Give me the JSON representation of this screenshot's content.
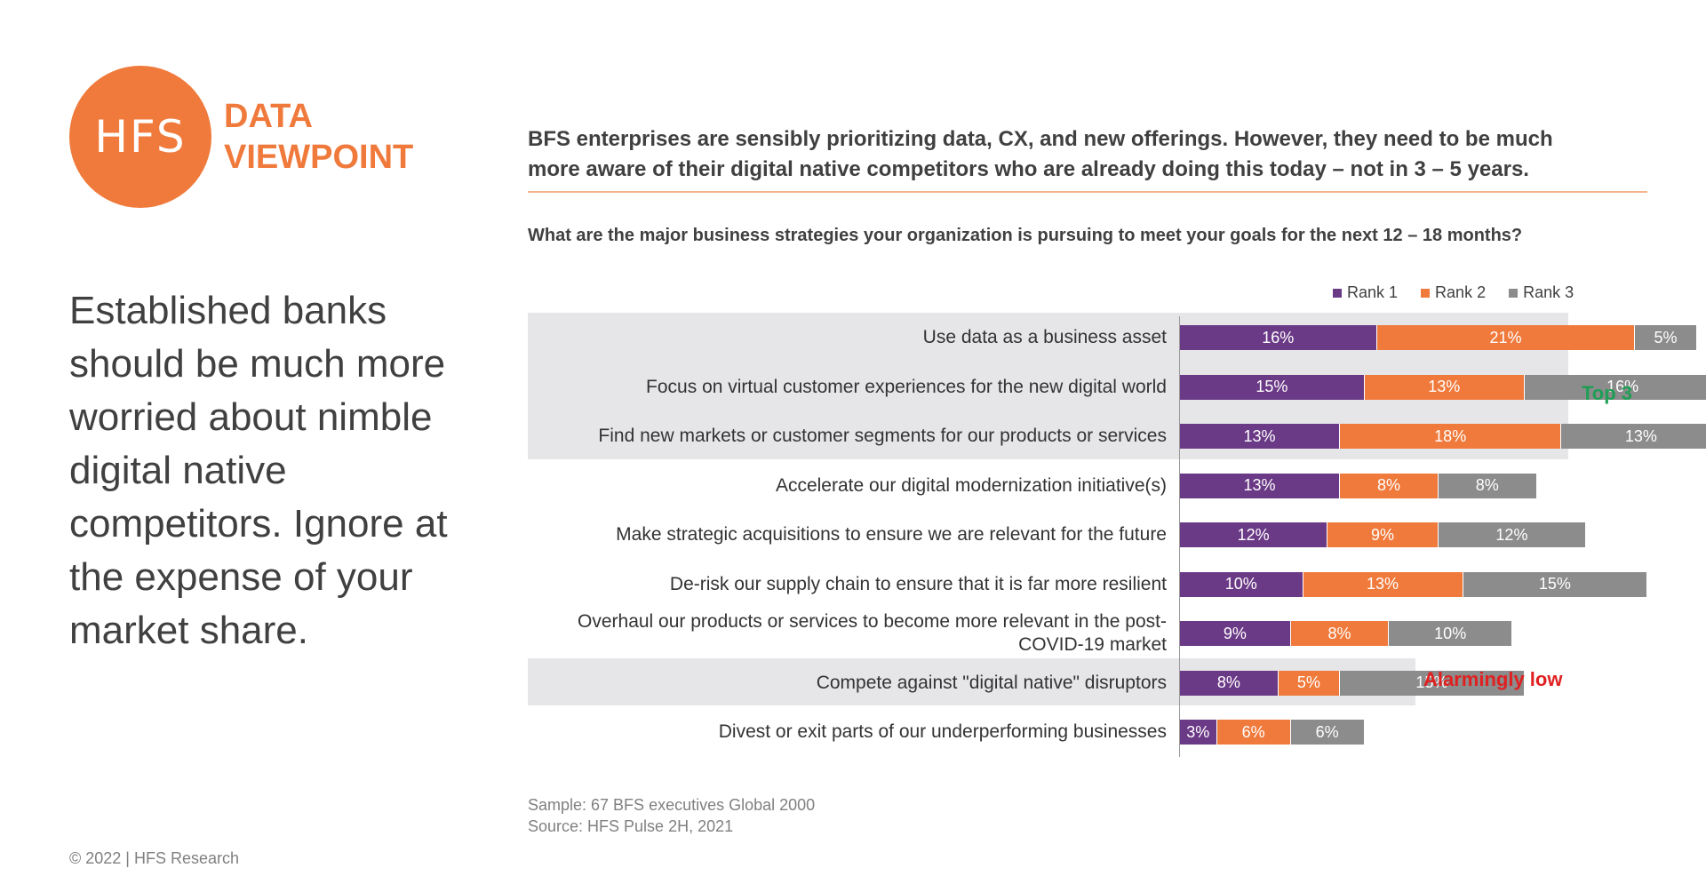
{
  "logo": {
    "mark": "HFS",
    "line1": "DATA",
    "line2": "VIEWPOINT"
  },
  "lead_text": "Established banks should be much more worried about nimble digital native competitors. Ignore at the expense of your market share.",
  "headline": {
    "line1": "BFS enterprises are sensibly prioritizing data, CX, and new offerings. However, they need to be much",
    "line2": "more aware of their digital native competitors who are already doing this today – not in 3 – 5 years."
  },
  "callouts": {
    "top": "Top 3",
    "low": "Alarmingly low"
  },
  "footnote": {
    "sample": "Sample: 67 BFS executives Global 2000",
    "source": "Source: HFS Pulse 2H, 2021"
  },
  "copyright": "© 2022 | HFS Research",
  "colors": {
    "rank1": "#6b3a87",
    "rank2": "#f07a3c",
    "rank3": "#8c8c8c",
    "accent": "#f07a3c"
  },
  "chart_data": {
    "type": "bar",
    "orientation": "horizontal",
    "stacked": true,
    "title": "What are the major business strategies your organization is pursuing to meet your goals for the next 12 – 18 months?",
    "legend_position": "top-right",
    "categories": [
      "Use data as a business asset",
      "Focus on virtual customer experiences for the new digital world",
      "Find new markets or customer segments for our products or services",
      "Accelerate our digital modernization initiative(s)",
      "Make strategic acquisitions to ensure we are relevant for the future",
      "De-risk our supply chain to ensure that it is far more resilient",
      "Overhaul our products or services to become more relevant in the post-COVID-19 market",
      "Compete against \"digital native\" disruptors",
      "Divest or exit parts of our underperforming businesses"
    ],
    "series": [
      {
        "name": "Rank 1",
        "values": [
          16,
          15,
          13,
          13,
          12,
          10,
          9,
          8,
          3
        ]
      },
      {
        "name": "Rank 2",
        "values": [
          21,
          13,
          18,
          8,
          9,
          13,
          8,
          5,
          6
        ]
      },
      {
        "name": "Rank 3",
        "values": [
          5,
          16,
          13,
          8,
          12,
          15,
          10,
          15,
          6
        ]
      }
    ],
    "value_suffix": "%",
    "highlighted_categories": [
      0,
      1,
      2,
      7
    ]
  }
}
